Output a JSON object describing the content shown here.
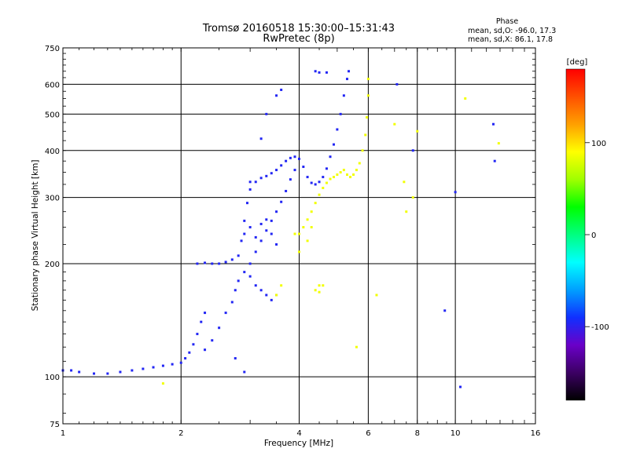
{
  "header": {
    "title_line1": "Tromsø 20160518 15:30:00–15:31:43",
    "title_line2": "RwPretec (8p)"
  },
  "phase_info": {
    "heading": "Phase",
    "line_o": "mean, sd,O: -96.0, 17.3",
    "line_x": "mean, sd,X: 86.1, 17.8"
  },
  "chart_data": {
    "type": "scatter",
    "title": "Tromsø 20160518 15:30:00–15:31:43",
    "subtitle": "RwPretec (8p)",
    "xlabel": "Frequency [MHz]",
    "ylabel": "Stationary phase Virtual Height [km]",
    "xscale": "log",
    "yscale": "log",
    "xlim": [
      1,
      16
    ],
    "ylim": [
      75,
      750
    ],
    "xticks": [
      1,
      2,
      4,
      6,
      8,
      10,
      16
    ],
    "xtick_labels": [
      "1",
      "2",
      "4",
      "6",
      "8",
      "10",
      "16"
    ],
    "yticks": [
      75,
      100,
      200,
      300,
      400,
      500,
      600,
      750
    ],
    "ytick_labels": [
      "75",
      "100",
      "200",
      "300",
      "400",
      "500",
      "600",
      "750"
    ],
    "grid": true,
    "colorbar": {
      "label": "[deg]",
      "range": [
        -180,
        180
      ],
      "ticks": [
        100,
        0,
        -100
      ],
      "tick_labels": [
        "100",
        "0",
        "-100"
      ],
      "colors": [
        "#000000",
        "#3c0064",
        "#6a00c8",
        "#1030ff",
        "#00a0ff",
        "#00ffff",
        "#00ff80",
        "#00ff00",
        "#a0ff00",
        "#ffff00",
        "#ffa000",
        "#ff5000",
        "#ff0000"
      ]
    },
    "series": [
      {
        "mode": "O",
        "phase_deg": -96,
        "points": [
          [
            1.0,
            104
          ],
          [
            1.05,
            104
          ],
          [
            1.1,
            103
          ],
          [
            1.2,
            102
          ],
          [
            1.3,
            102
          ],
          [
            1.4,
            103
          ],
          [
            1.5,
            104
          ],
          [
            1.6,
            105
          ],
          [
            1.7,
            106
          ],
          [
            1.8,
            107
          ],
          [
            1.9,
            108
          ],
          [
            2.0,
            109
          ],
          [
            2.05,
            112
          ],
          [
            2.1,
            116
          ],
          [
            2.15,
            122
          ],
          [
            2.2,
            130
          ],
          [
            2.25,
            140
          ],
          [
            2.3,
            148
          ],
          [
            2.2,
            200
          ],
          [
            2.3,
            201
          ],
          [
            2.4,
            200
          ],
          [
            2.5,
            200
          ],
          [
            2.6,
            202
          ],
          [
            2.7,
            205
          ],
          [
            2.8,
            210
          ],
          [
            2.85,
            230
          ],
          [
            2.9,
            260
          ],
          [
            2.95,
            290
          ],
          [
            3.0,
            315
          ],
          [
            3.1,
            330
          ],
          [
            3.2,
            338
          ],
          [
            3.3,
            342
          ],
          [
            3.4,
            348
          ],
          [
            3.5,
            355
          ],
          [
            3.6,
            365
          ],
          [
            3.7,
            375
          ],
          [
            3.8,
            382
          ],
          [
            3.9,
            385
          ],
          [
            4.0,
            380
          ],
          [
            4.1,
            362
          ],
          [
            4.2,
            340
          ],
          [
            4.3,
            328
          ],
          [
            4.4,
            325
          ],
          [
            4.5,
            330
          ],
          [
            4.6,
            340
          ],
          [
            4.7,
            358
          ],
          [
            4.8,
            385
          ],
          [
            4.9,
            415
          ],
          [
            5.0,
            455
          ],
          [
            5.1,
            500
          ],
          [
            5.2,
            560
          ],
          [
            5.3,
            620
          ],
          [
            5.35,
            650
          ],
          [
            2.3,
            118
          ],
          [
            2.4,
            125
          ],
          [
            2.5,
            135
          ],
          [
            2.6,
            148
          ],
          [
            2.7,
            158
          ],
          [
            2.75,
            170
          ],
          [
            2.8,
            180
          ],
          [
            3.0,
            200
          ],
          [
            3.1,
            215
          ],
          [
            3.2,
            230
          ],
          [
            3.3,
            245
          ],
          [
            3.4,
            260
          ],
          [
            3.5,
            275
          ],
          [
            3.6,
            292
          ],
          [
            3.7,
            312
          ],
          [
            3.8,
            335
          ],
          [
            3.9,
            355
          ],
          [
            3.5,
            560
          ],
          [
            3.6,
            580
          ],
          [
            3.3,
            500
          ],
          [
            3.2,
            430
          ],
          [
            3.0,
            330
          ],
          [
            4.4,
            650
          ],
          [
            4.5,
            645
          ],
          [
            4.7,
            645
          ],
          [
            7.1,
            600
          ],
          [
            7.8,
            400
          ],
          [
            9.4,
            150
          ],
          [
            10.0,
            310
          ],
          [
            10.3,
            94
          ],
          [
            12.5,
            470
          ],
          [
            12.6,
            375
          ],
          [
            2.9,
            190
          ],
          [
            3.0,
            185
          ],
          [
            3.1,
            175
          ],
          [
            3.2,
            170
          ],
          [
            3.3,
            165
          ],
          [
            3.4,
            160
          ],
          [
            3.5,
            165
          ],
          [
            2.9,
            240
          ],
          [
            3.0,
            250
          ],
          [
            3.1,
            235
          ],
          [
            3.2,
            255
          ],
          [
            3.3,
            262
          ],
          [
            3.4,
            240
          ],
          [
            3.5,
            225
          ],
          [
            2.75,
            112
          ],
          [
            2.9,
            103
          ]
        ]
      },
      {
        "mode": "X",
        "phase_deg": 86,
        "points": [
          [
            4.0,
            240
          ],
          [
            4.1,
            250
          ],
          [
            4.2,
            262
          ],
          [
            4.3,
            275
          ],
          [
            4.4,
            290
          ],
          [
            4.5,
            305
          ],
          [
            4.6,
            318
          ],
          [
            4.7,
            328
          ],
          [
            4.8,
            336
          ],
          [
            4.9,
            340
          ],
          [
            5.0,
            345
          ],
          [
            5.1,
            350
          ],
          [
            5.2,
            355
          ],
          [
            5.3,
            345
          ],
          [
            5.4,
            340
          ],
          [
            5.5,
            345
          ],
          [
            5.6,
            355
          ],
          [
            5.7,
            370
          ],
          [
            5.8,
            400
          ],
          [
            5.9,
            440
          ],
          [
            5.95,
            490
          ],
          [
            6.0,
            560
          ],
          [
            6.0,
            620
          ],
          [
            4.4,
            170
          ],
          [
            4.5,
            168
          ],
          [
            4.3,
            250
          ],
          [
            4.2,
            230
          ],
          [
            3.9,
            240
          ],
          [
            4.0,
            215
          ],
          [
            3.5,
            165
          ],
          [
            3.6,
            175
          ],
          [
            4.6,
            175
          ],
          [
            4.5,
            175
          ],
          [
            5.6,
            120
          ],
          [
            6.3,
            165
          ],
          [
            7.0,
            470
          ],
          [
            7.4,
            330
          ],
          [
            7.5,
            275
          ],
          [
            7.8,
            300
          ],
          [
            8.0,
            450
          ],
          [
            12.9,
            418
          ],
          [
            10.6,
            550
          ],
          [
            1.8,
            96
          ]
        ]
      }
    ]
  }
}
